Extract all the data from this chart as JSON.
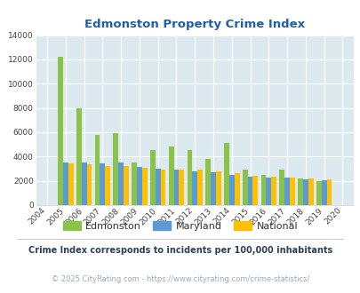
{
  "title": "Edmonston Property Crime Index",
  "years": [
    2004,
    2005,
    2006,
    2007,
    2008,
    2009,
    2010,
    2011,
    2012,
    2013,
    2014,
    2015,
    2016,
    2017,
    2018,
    2019,
    2020
  ],
  "edmonston": [
    0,
    12250,
    8000,
    5750,
    5900,
    3500,
    4550,
    4800,
    4550,
    3800,
    5100,
    2900,
    2500,
    2900,
    2200,
    2000,
    0
  ],
  "maryland": [
    0,
    3500,
    3500,
    3450,
    3500,
    3150,
    3000,
    2900,
    2800,
    2700,
    2500,
    2350,
    2300,
    2250,
    2100,
    2050,
    0
  ],
  "national": [
    0,
    3450,
    3350,
    3250,
    3250,
    3050,
    2950,
    2900,
    2900,
    2750,
    2600,
    2450,
    2350,
    2300,
    2200,
    2100,
    0
  ],
  "edmonston_color": "#8bc34a",
  "maryland_color": "#5b9bd5",
  "national_color": "#ffc000",
  "bg_color": "#dce9ef",
  "ylim": [
    0,
    14000
  ],
  "yticks": [
    0,
    2000,
    4000,
    6000,
    8000,
    10000,
    12000,
    14000
  ],
  "legend_labels": [
    "Edmonston",
    "Maryland",
    "National"
  ],
  "footnote1": "Crime Index corresponds to incidents per 100,000 inhabitants",
  "footnote2": "© 2025 CityRating.com - https://www.cityrating.com/crime-statistics/",
  "title_color": "#1f5fa6",
  "footnote1_color": "#2e4057",
  "footnote2_color": "#9baab8"
}
